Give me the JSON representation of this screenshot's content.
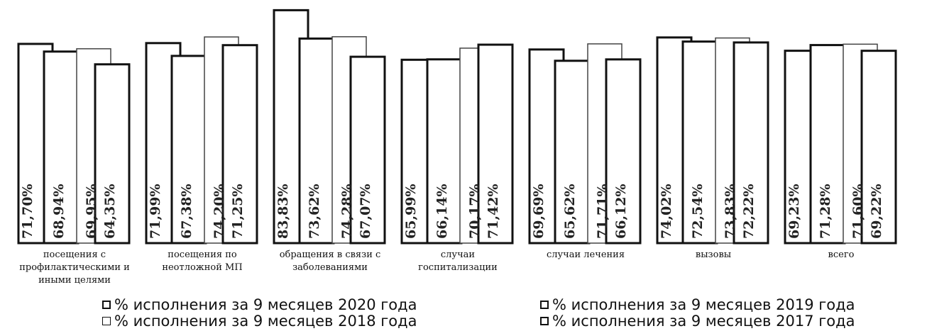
{
  "chart_data": {
    "type": "bar",
    "categories": [
      [
        "посещения с",
        "профилактическими и",
        "иными целями"
      ],
      [
        "посещения по",
        "неотложной МП"
      ],
      [
        "обращения в связи с",
        "заболеваниями"
      ],
      [
        "случаи",
        "госпитализации"
      ],
      [
        "случаи лечения"
      ],
      [
        "вызовы"
      ],
      [
        "всего"
      ]
    ],
    "series": [
      {
        "name": "% исполнения за 9 месяцев 2020 года",
        "values": [
          71.7,
          71.99,
          83.83,
          65.99,
          69.69,
          74.02,
          69.23
        ],
        "labels": [
          "71,70%",
          "71,99%",
          "83,83%",
          "65,99%",
          "69,69%",
          "74,02%",
          "69,23%"
        ],
        "stroke": "#111111",
        "stroke_width": 3,
        "label_color": "#222222"
      },
      {
        "name": "% исполнения за 9 месяцев 2019 года",
        "values": [
          68.94,
          67.38,
          73.62,
          66.14,
          65.62,
          72.54,
          71.28
        ],
        "labels": [
          "68,94%",
          "67,38%",
          "73,62%",
          "66,14%",
          "65,62%",
          "72,54%",
          "71,28%"
        ],
        "stroke": "#111111",
        "stroke_width": 3,
        "label_color": "#222222"
      },
      {
        "name": "% исполнения за 9 месяцев 2018 года",
        "values": [
          69.95,
          74.2,
          74.28,
          70.17,
          71.71,
          73.83,
          71.6
        ],
        "labels": [
          "69,95%",
          "74,20%",
          "74,28%",
          "70,17%",
          "71,71%",
          "73,83%",
          "71,60%"
        ],
        "stroke": "#444444",
        "stroke_width": 1.5,
        "label_color": "#999999"
      },
      {
        "name": "% исполнения за 9 месяцев 2017 года",
        "values": [
          64.35,
          71.25,
          67.07,
          71.42,
          66.12,
          72.22,
          69.22
        ],
        "labels": [
          "64,35%",
          "71,25%",
          "67,07%",
          "71,42%",
          "66,12%",
          "72,22%",
          "69,22%"
        ],
        "stroke": "#111111",
        "stroke_width": 3,
        "label_color": "#222222"
      }
    ],
    "legend_placement": "bottom",
    "grid": false
  }
}
